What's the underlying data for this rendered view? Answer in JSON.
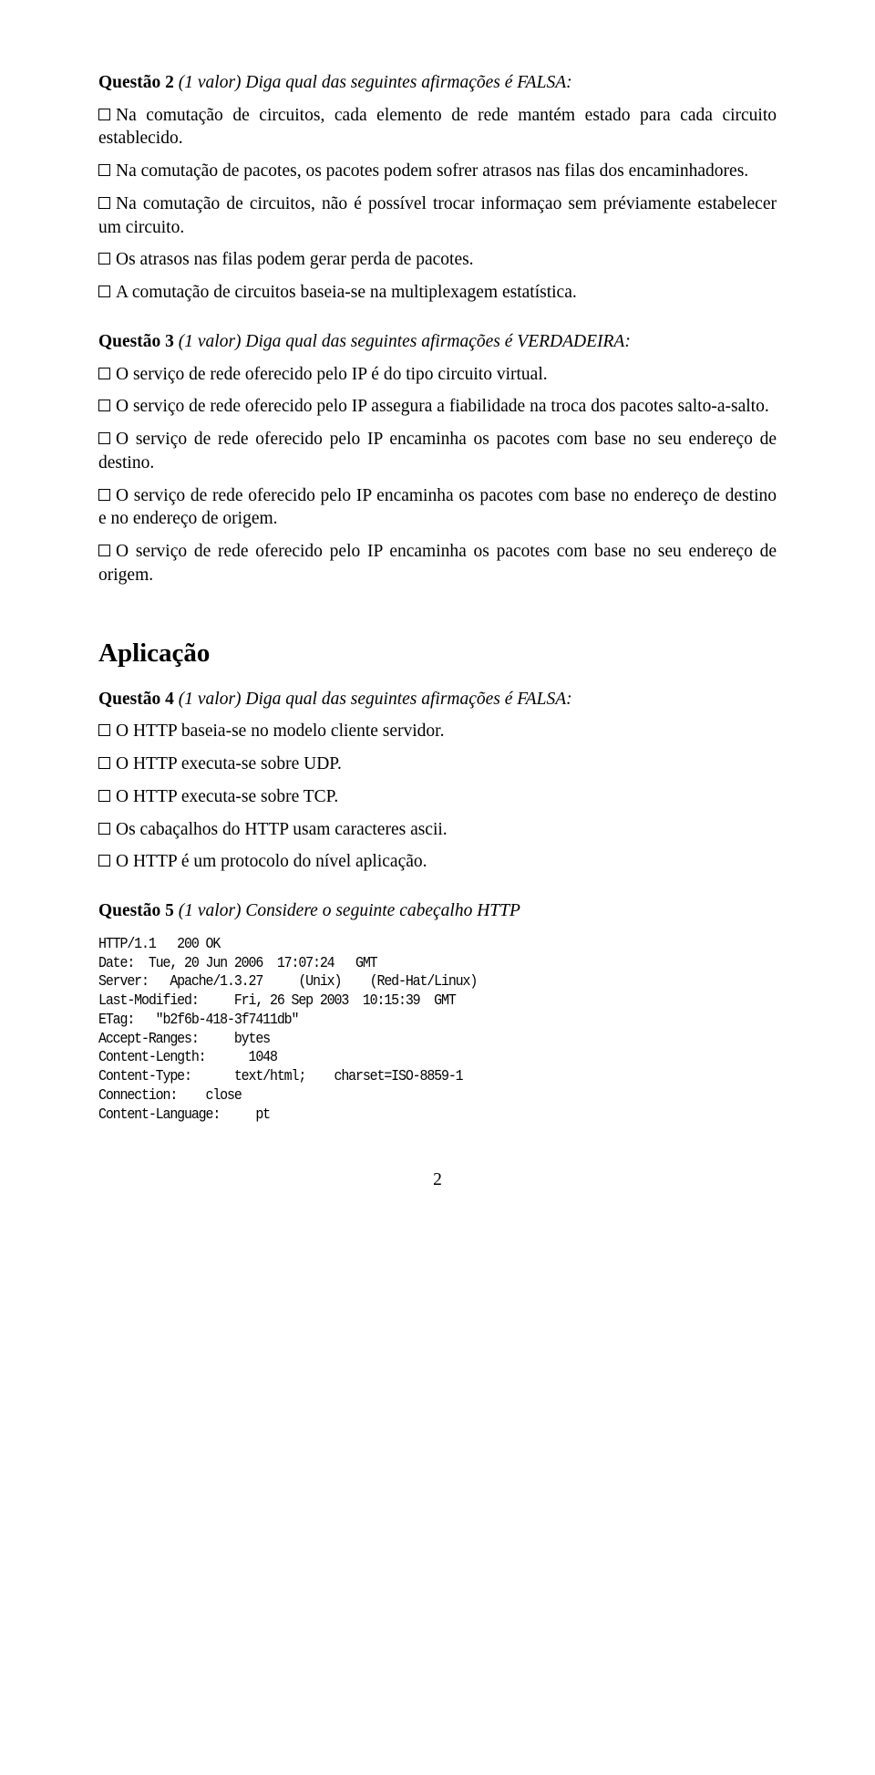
{
  "q2": {
    "header_bold": "Questão 2",
    "header_italic": " (1 valor) Diga qual das seguintes afirmações é FALSA:",
    "opts": [
      "Na comutação de circuitos, cada elemento de rede mantém estado para cada circuito establecido.",
      "Na comutação de pacotes, os pacotes podem sofrer atrasos nas filas dos encaminhadores.",
      "Na comutação de circuitos, não é possível trocar informaçao sem préviamente estabelecer um circuito.",
      "Os atrasos nas filas podem gerar perda de pacotes.",
      "A comutação de circuitos baseia-se na multiplexagem estatística."
    ]
  },
  "q3": {
    "header_bold": "Questão 3",
    "header_italic": " (1 valor) Diga qual das seguintes afirmações é VERDADEIRA:",
    "opts": [
      "O serviço de rede oferecido pelo IP é do tipo circuito virtual.",
      "O serviço de rede oferecido pelo IP assegura a fiabilidade na troca dos pacotes salto-a-salto.",
      "O serviço de rede oferecido pelo IP encaminha os pacotes com base no seu endereço de destino.",
      "O serviço de rede oferecido pelo IP encaminha os pacotes com base no endereço de destino e no endereço de origem.",
      "O serviço de rede oferecido pelo IP encaminha os pacotes com base no seu endereço de origem."
    ]
  },
  "section": "Aplicação",
  "q4": {
    "header_bold": "Questão 4",
    "header_italic": " (1 valor) Diga qual das seguintes afirmações é FALSA:",
    "opts": [
      "O HTTP baseia-se no modelo cliente servidor.",
      "O HTTP executa-se sobre UDP.",
      "O HTTP executa-se sobre TCP.",
      "Os cabaçalhos do HTTP usam caracteres ascii.",
      "O HTTP é um protocolo do nível aplicação."
    ]
  },
  "q5": {
    "header_bold": "Questão 5",
    "header_italic": " (1 valor) Considere o seguinte cabeçalho HTTP",
    "code": "HTTP/1.1   200 OK\nDate:  Tue, 20 Jun 2006  17:07:24   GMT\nServer:   Apache/1.3.27     (Unix)    (Red-Hat/Linux)\nLast-Modified:     Fri, 26 Sep 2003  10:15:39  GMT\nETag:   \"b2f6b-418-3f7411db\"\nAccept-Ranges:     bytes\nContent-Length:      1048\nContent-Type:      text/html;    charset=ISO-8859-1\nConnection:    close\nContent-Language:     pt"
  },
  "page_number": "2"
}
